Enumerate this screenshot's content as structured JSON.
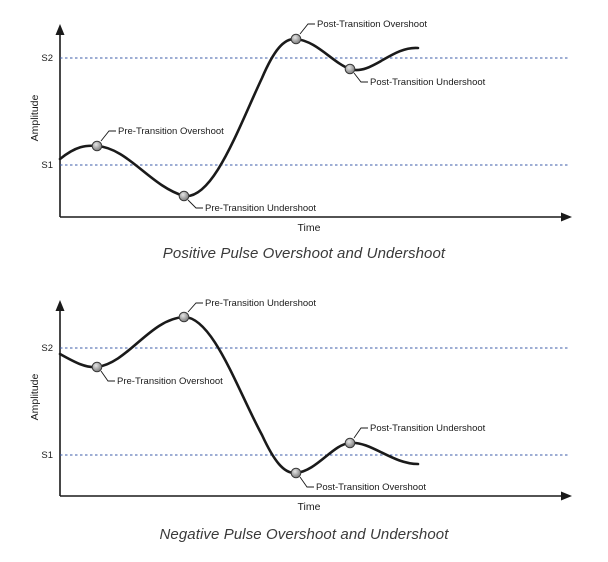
{
  "panels": [
    {
      "caption": "Positive Pulse Overshoot and Undershoot",
      "x_axis_label": "Time",
      "y_axis_label": "Amplitude",
      "levels": [
        "S2",
        "S1"
      ],
      "annotations": {
        "pre_overshoot": "Pre-Transition Overshoot",
        "pre_undershoot": "Pre-Transition Undershoot",
        "post_overshoot": "Post-Transition Overshoot",
        "post_undershoot": "Post-Transition Undershoot"
      }
    },
    {
      "caption": "Negative Pulse Overshoot and Undershoot",
      "x_axis_label": "Time",
      "y_axis_label": "Amplitude",
      "levels": [
        "S2",
        "S1"
      ],
      "annotations": {
        "pre_undershoot": "Pre-Transition Undershoot",
        "pre_overshoot": "Pre-Transition Overshoot",
        "post_undershoot": "Post-Transition Undershoot",
        "post_overshoot": "Post-Transition Overshoot"
      }
    }
  ],
  "colors": {
    "curve": "#1a1a1a",
    "level_line": "#3b5ba8",
    "marker_fill": "#9a9a9a",
    "caption_text": "#3a3a3a"
  }
}
